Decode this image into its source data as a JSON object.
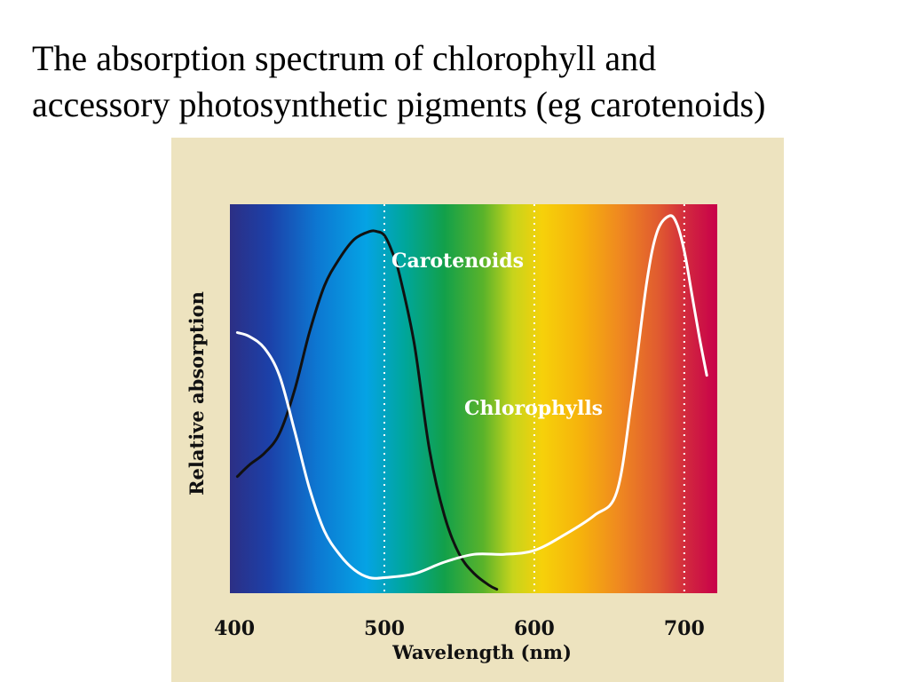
{
  "slide": {
    "title_line1": "The absorption spectrum of chlorophyll and",
    "title_line2": "accessory photosynthetic pigments (eg carotenoids)"
  },
  "chart_data": {
    "type": "line",
    "title": "",
    "xlabel": "Wavelength (nm)",
    "ylabel": "Relative absorption",
    "xlim": [
      397,
      722
    ],
    "ylim": [
      0,
      1
    ],
    "x_ticks": [
      400,
      500,
      600,
      700
    ],
    "x_tick_labels": [
      "400",
      "500",
      "600",
      "700"
    ],
    "reference_lines_x": [
      500,
      600,
      700
    ],
    "grid": false,
    "background": "visible light spectrum gradient (violet to red)",
    "series": [
      {
        "name": "Carotenoids",
        "color": "#111111",
        "x": [
          402,
          410,
          420,
          430,
          440,
          450,
          460,
          470,
          480,
          490,
          495,
          500,
          505,
          510,
          520,
          530,
          540,
          550,
          560,
          570,
          575
        ],
        "y": [
          0.3,
          0.33,
          0.36,
          0.41,
          0.52,
          0.67,
          0.79,
          0.86,
          0.91,
          0.93,
          0.93,
          0.92,
          0.88,
          0.82,
          0.64,
          0.37,
          0.2,
          0.1,
          0.05,
          0.02,
          0.01
        ]
      },
      {
        "name": "Chlorophylls",
        "color": "#ffffff",
        "x": [
          402,
          410,
          420,
          430,
          440,
          450,
          460,
          470,
          480,
          490,
          500,
          520,
          540,
          560,
          580,
          600,
          620,
          640,
          655,
          665,
          675,
          682,
          690,
          695,
          700,
          705,
          710,
          715
        ],
        "y": [
          0.67,
          0.66,
          0.63,
          0.56,
          0.42,
          0.27,
          0.16,
          0.1,
          0.06,
          0.04,
          0.04,
          0.05,
          0.08,
          0.1,
          0.1,
          0.11,
          0.15,
          0.2,
          0.26,
          0.5,
          0.8,
          0.93,
          0.97,
          0.95,
          0.88,
          0.77,
          0.66,
          0.56
        ]
      }
    ],
    "annotations": [
      {
        "text": "Carotenoids",
        "series": "Carotenoids"
      },
      {
        "text": "Chlorophylls",
        "series": "Chlorophylls"
      }
    ]
  }
}
